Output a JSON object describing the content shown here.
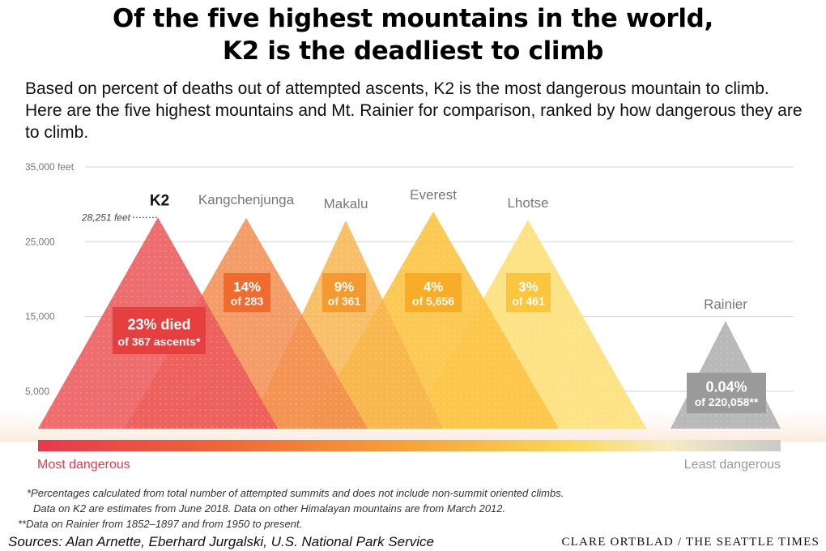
{
  "title_lines": [
    "Of the five highest mountains in the world,",
    "K2 is the deadliest to climb"
  ],
  "subtitle": "Based on percent of deaths out of attempted ascents, K2 is the most dangerous mountain to climb. Here are the five highest mountains and Mt. Rainier for comparison, ranked by how dangerous they are to climb.",
  "colors": {
    "K2": "#ec5a5b",
    "Kangchenjunga": "#f28c4f",
    "Makalu": "#f7b54e",
    "Everest": "#fcc445",
    "Lhotse": "#fde27e",
    "Rainier": "#b9b9b9",
    "label_box_k2": "#e63f3f",
    "label_box_kang": "#f06b2e",
    "label_box_makalu": "#f59a30",
    "label_box_everest": "#f8ad28",
    "label_box_lhotse": "#fbc63e",
    "label_box_rainier": "#9a9a9a",
    "scale_start": "#e8384f",
    "scale_end": "#c9c9c9"
  },
  "chart_data": {
    "type": "area",
    "y_axis": {
      "ylim": [
        0,
        35000
      ],
      "ticks": [
        {
          "value": 5000,
          "label": "5,000"
        },
        {
          "value": 15000,
          "label": "15,000"
        },
        {
          "value": 25000,
          "label": "25,000"
        },
        {
          "value": 35000,
          "label": "35,000 feet"
        }
      ],
      "grid": true
    },
    "mountains": [
      {
        "name": "K2",
        "height_ft": 28251,
        "height_label": "28,251 feet",
        "death_pct_label": "23% died",
        "ascents_label": "of 367 ascents*",
        "death_pct": 23,
        "attempts": 367,
        "highlight": true
      },
      {
        "name": "Kangchenjunga",
        "height_ft": 28169,
        "death_pct_label": "14%",
        "ascents_label": "of 283",
        "death_pct": 14,
        "attempts": 283
      },
      {
        "name": "Makalu",
        "height_ft": 27838,
        "death_pct_label": "9%",
        "ascents_label": "of 361",
        "death_pct": 9,
        "attempts": 361
      },
      {
        "name": "Everest",
        "height_ft": 29029,
        "death_pct_label": "4%",
        "ascents_label": "of 5,656",
        "death_pct": 4,
        "attempts": 5656
      },
      {
        "name": "Lhotse",
        "height_ft": 27940,
        "death_pct_label": "3%",
        "ascents_label": "of 461",
        "death_pct": 3,
        "attempts": 461
      },
      {
        "name": "Rainier",
        "height_ft": 14411,
        "death_pct_label": "0.04%",
        "ascents_label": "of 220,058**",
        "death_pct": 0.04,
        "attempts": 220058
      }
    ],
    "scale": {
      "left_label": "Most dangerous",
      "right_label": "Least dangerous"
    }
  },
  "footnotes": [
    "*Percentages calculated from total number of attempted summits and does not include non-summit oriented climbs.",
    "Data on K2 are estimates from June 2018. Data on other Himalayan mountains are from March 2012.",
    "**Data on Rainier from 1852–1897 and from 1950 to present."
  ],
  "sources": "Sources: Alan Arnette, Eberhard Jurgalski, U.S. National Park Service",
  "credit": "CLARE ORTBLAD / THE SEATTLE TIMES"
}
